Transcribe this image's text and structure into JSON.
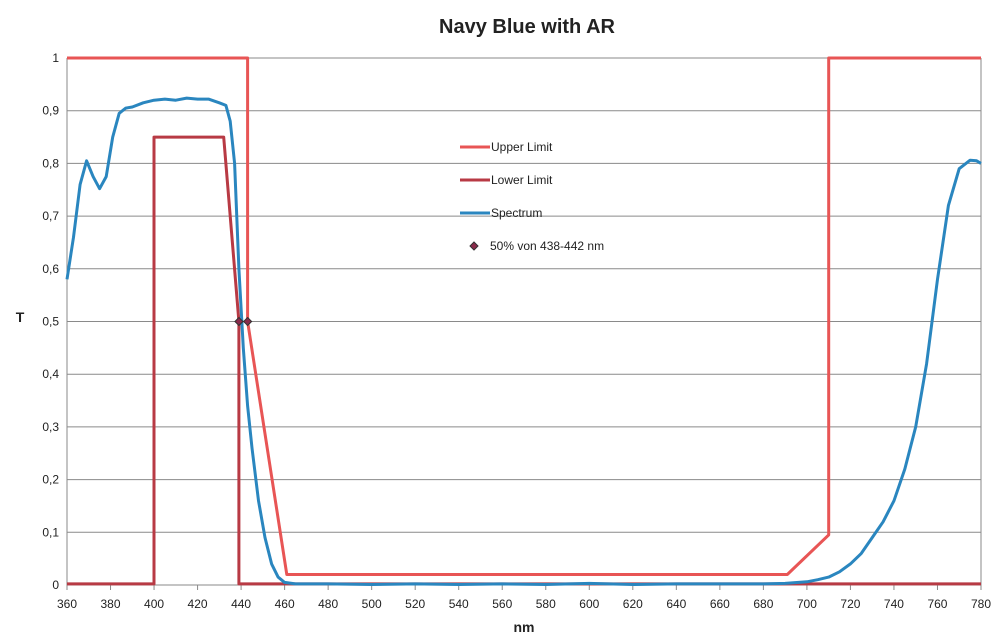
{
  "chart_data": {
    "type": "line",
    "title": "Navy Blue with AR",
    "xlabel": "nm",
    "ylabel": "T",
    "xlim": [
      360,
      780
    ],
    "ylim": [
      0,
      1
    ],
    "x_ticks": [
      "360",
      "380",
      "400",
      "420",
      "440",
      "460",
      "480",
      "500",
      "520",
      "540",
      "560",
      "580",
      "600",
      "620",
      "640",
      "660",
      "680",
      "700",
      "720",
      "740",
      "760",
      "780"
    ],
    "y_ticks": [
      "0",
      "0,1",
      "0,2",
      "0,3",
      "0,4",
      "0,5",
      "0,6",
      "0,7",
      "0,8",
      "0,9",
      "1"
    ],
    "grid": true,
    "legend_position": "center-top",
    "series": [
      {
        "name": "Spectrum",
        "color": "#2a86bf",
        "points": [
          [
            360,
            0.58
          ],
          [
            363,
            0.66
          ],
          [
            366,
            0.76
          ],
          [
            369,
            0.805
          ],
          [
            372,
            0.775
          ],
          [
            375,
            0.752
          ],
          [
            378,
            0.775
          ],
          [
            381,
            0.85
          ],
          [
            384,
            0.895
          ],
          [
            387,
            0.905
          ],
          [
            390,
            0.907
          ],
          [
            395,
            0.915
          ],
          [
            400,
            0.92
          ],
          [
            405,
            0.922
          ],
          [
            410,
            0.92
          ],
          [
            415,
            0.924
          ],
          [
            420,
            0.922
          ],
          [
            425,
            0.922
          ],
          [
            430,
            0.915
          ],
          [
            433,
            0.91
          ],
          [
            435,
            0.88
          ],
          [
            437,
            0.8
          ],
          [
            439,
            0.6
          ],
          [
            441,
            0.45
          ],
          [
            443,
            0.34
          ],
          [
            445,
            0.26
          ],
          [
            448,
            0.16
          ],
          [
            451,
            0.09
          ],
          [
            454,
            0.04
          ],
          [
            457,
            0.015
          ],
          [
            460,
            0.005
          ],
          [
            465,
            0.002
          ],
          [
            480,
            0.002
          ],
          [
            500,
            0.001
          ],
          [
            520,
            0.002
          ],
          [
            540,
            0.001
          ],
          [
            560,
            0.002
          ],
          [
            580,
            0.001
          ],
          [
            600,
            0.003
          ],
          [
            620,
            0.001
          ],
          [
            640,
            0.002
          ],
          [
            660,
            0.002
          ],
          [
            680,
            0.002
          ],
          [
            690,
            0.003
          ],
          [
            700,
            0.006
          ],
          [
            705,
            0.01
          ],
          [
            710,
            0.015
          ],
          [
            715,
            0.025
          ],
          [
            720,
            0.04
          ],
          [
            725,
            0.06
          ],
          [
            730,
            0.09
          ],
          [
            735,
            0.12
          ],
          [
            740,
            0.16
          ],
          [
            745,
            0.22
          ],
          [
            750,
            0.3
          ],
          [
            755,
            0.42
          ],
          [
            760,
            0.58
          ],
          [
            765,
            0.72
          ],
          [
            770,
            0.79
          ],
          [
            775,
            0.806
          ],
          [
            778,
            0.805
          ],
          [
            780,
            0.8
          ]
        ]
      },
      {
        "name": "Upper Limit",
        "color": "#e85555",
        "points": [
          [
            360,
            1
          ],
          [
            443,
            1
          ],
          [
            443,
            0.5
          ],
          [
            461,
            0.02
          ],
          [
            691,
            0.02
          ],
          [
            710,
            0.095
          ],
          [
            710,
            1
          ],
          [
            780,
            1
          ]
        ]
      },
      {
        "name": "Lower Limit",
        "color": "#b83a44",
        "points": [
          [
            360,
            0.002
          ],
          [
            400,
            0.002
          ],
          [
            400,
            0.85
          ],
          [
            432,
            0.85
          ],
          [
            439,
            0.5
          ],
          [
            439,
            0.002
          ],
          [
            780,
            0.002
          ]
        ]
      },
      {
        "name": "50% von 438-442 nm",
        "color": "#8a2a4a",
        "marker": "diamond",
        "points": [
          [
            439,
            0.5
          ],
          [
            443,
            0.5
          ]
        ]
      }
    ]
  }
}
